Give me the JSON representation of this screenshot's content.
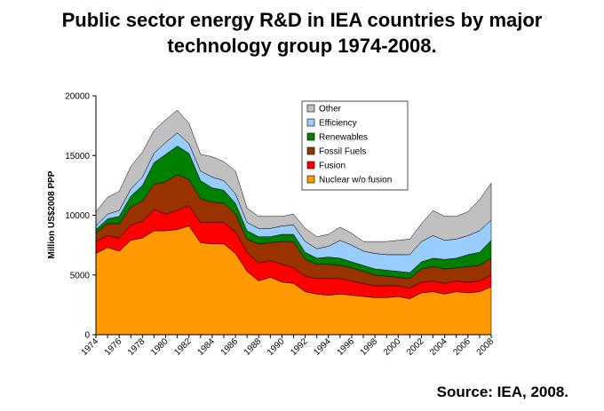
{
  "title_line1": "Public sector energy R&D in IEA countries by major",
  "title_line2": "technology group 1974-2008.",
  "source": "Source: IEA, 2008.",
  "chart_data": {
    "type": "area",
    "stacked": true,
    "ylabel": "Million US$2008 PPP",
    "xlabel": "",
    "ylim": [
      0,
      20000
    ],
    "yticks": [
      0,
      5000,
      10000,
      15000,
      20000
    ],
    "xlim": [
      1974,
      2008
    ],
    "xticks": [
      1974,
      1976,
      1978,
      1980,
      1982,
      1984,
      1986,
      1988,
      1990,
      1992,
      1994,
      1996,
      1998,
      2000,
      2002,
      2004,
      2006,
      2008
    ],
    "legend_position": "top-center",
    "x": [
      1974,
      1975,
      1976,
      1977,
      1978,
      1979,
      1980,
      1981,
      1982,
      1983,
      1984,
      1985,
      1986,
      1987,
      1988,
      1989,
      1990,
      1991,
      1992,
      1993,
      1994,
      1995,
      1996,
      1997,
      1998,
      1999,
      2000,
      2001,
      2002,
      2003,
      2004,
      2005,
      2006,
      2007,
      2008
    ],
    "series": [
      {
        "name": "Nuclear w/o fusion",
        "color": "#FF9900",
        "values": [
          6800,
          7300,
          7000,
          7900,
          8100,
          8700,
          8700,
          8800,
          9100,
          7700,
          7600,
          7600,
          6800,
          5300,
          4500,
          4800,
          4400,
          4300,
          3600,
          3400,
          3300,
          3400,
          3300,
          3200,
          3100,
          3100,
          3200,
          3000,
          3500,
          3600,
          3400,
          3600,
          3500,
          3600,
          4000
        ]
      },
      {
        "name": "Fusion",
        "color": "#FF0000",
        "values": [
          1000,
          1000,
          1100,
          1300,
          1400,
          1800,
          1400,
          1600,
          1700,
          1700,
          1800,
          1800,
          1800,
          1600,
          1500,
          1400,
          1500,
          1300,
          1300,
          1300,
          1400,
          1300,
          1200,
          1100,
          1000,
          1000,
          900,
          900,
          900,
          900,
          900,
          900,
          900,
          900,
          1000
        ]
      },
      {
        "name": "Fossil Fuels",
        "color": "#993300",
        "values": [
          700,
          1000,
          1200,
          1500,
          1700,
          2100,
          2700,
          3000,
          2200,
          2000,
          1700,
          1600,
          1500,
          1100,
          1600,
          1500,
          1900,
          2200,
          1400,
          1200,
          1200,
          1100,
          1100,
          1000,
          900,
          800,
          700,
          800,
          1100,
          1200,
          1200,
          1100,
          1300,
          1300,
          1400
        ]
      },
      {
        "name": "Renewables",
        "color": "#008000",
        "values": [
          300,
          400,
          600,
          900,
          1300,
          1800,
          2300,
          2400,
          2200,
          1500,
          1200,
          1100,
          900,
          700,
          600,
          500,
          600,
          600,
          600,
          500,
          600,
          600,
          500,
          500,
          500,
          500,
          500,
          500,
          600,
          700,
          800,
          800,
          1000,
          1100,
          1500
        ]
      },
      {
        "name": "Efficiency",
        "color": "#99CCFF",
        "values": [
          300,
          400,
          500,
          600,
          700,
          800,
          1000,
          1100,
          800,
          800,
          900,
          800,
          800,
          700,
          700,
          700,
          700,
          800,
          900,
          800,
          900,
          1500,
          1400,
          1200,
          1300,
          1300,
          1400,
          1500,
          1700,
          1900,
          1600,
          1600,
          1600,
          1800,
          1700
        ]
      },
      {
        "name": "Other",
        "color": "#C0C0C0",
        "values": [
          1200,
          1400,
          1600,
          1900,
          2100,
          1900,
          1900,
          1900,
          1700,
          1400,
          1700,
          1600,
          1900,
          1200,
          1000,
          1000,
          800,
          900,
          1100,
          1000,
          1000,
          1100,
          1000,
          800,
          1000,
          1100,
          1200,
          1300,
          1500,
          2100,
          2000,
          1900,
          2000,
          2600,
          3100
        ]
      }
    ]
  }
}
